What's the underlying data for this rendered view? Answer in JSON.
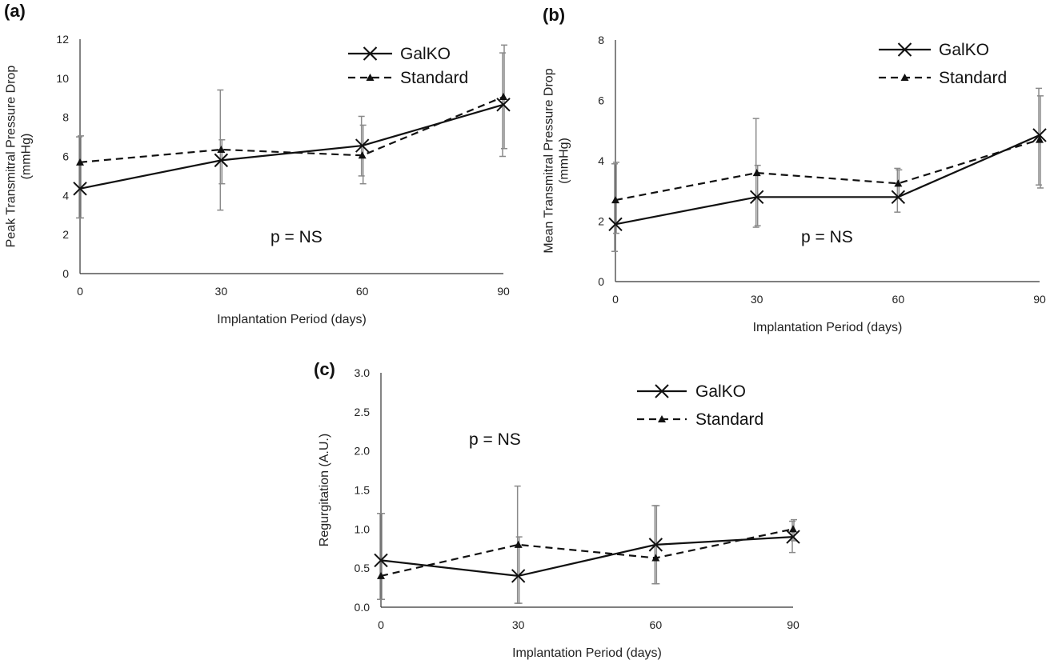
{
  "chart_data": [
    {
      "panel": "(a)",
      "type": "line",
      "xlabel": "Implantation Period (days)",
      "ylabel": "Peak Transmitral Pressure Drop (mmHg)",
      "ylabel_lines": [
        "Peak Transmitral Pressure Drop",
        "(mmHg)"
      ],
      "x_ticks": [
        0,
        30,
        60,
        90
      ],
      "y_ticks": [
        0,
        2,
        4,
        6,
        8,
        10,
        12
      ],
      "xlim": [
        0,
        90
      ],
      "ylim": [
        0,
        12
      ],
      "annotation": "p = NS",
      "legend_position": "top-right",
      "series": [
        {
          "name": "GalKO",
          "x": [
            0,
            30,
            60,
            90
          ],
          "values": [
            4.35,
            5.8,
            6.55,
            8.65
          ],
          "err_low": [
            2.85,
            3.25,
            5.0,
            6.0
          ],
          "err_high": [
            7.0,
            9.4,
            8.05,
            11.3
          ]
        },
        {
          "name": "Standard",
          "x": [
            0,
            30,
            60,
            90
          ],
          "values": [
            5.7,
            6.35,
            6.05,
            9.05
          ],
          "err_low": [
            2.85,
            4.6,
            4.6,
            6.4
          ],
          "err_high": [
            7.05,
            6.85,
            7.6,
            11.7
          ]
        }
      ]
    },
    {
      "panel": "(b)",
      "type": "line",
      "xlabel": "Implantation Period (days)",
      "ylabel": "Mean Transmitral Pressure Drop (mmHg)",
      "ylabel_lines": [
        "Mean Transmitral Pressure Drop",
        "(mmHg)"
      ],
      "x_ticks": [
        0,
        30,
        60,
        90
      ],
      "y_ticks": [
        0,
        2,
        4,
        6,
        8
      ],
      "xlim": [
        0,
        90
      ],
      "ylim": [
        0,
        8
      ],
      "annotation": "p = NS",
      "legend_position": "top-right",
      "series": [
        {
          "name": "GalKO",
          "x": [
            0,
            30,
            60,
            90
          ],
          "values": [
            1.9,
            2.8,
            2.8,
            4.85
          ],
          "err_low": [
            1.0,
            1.8,
            2.3,
            3.2
          ],
          "err_high": [
            3.9,
            5.4,
            3.75,
            6.4
          ]
        },
        {
          "name": "Standard",
          "x": [
            0,
            30,
            60,
            90
          ],
          "values": [
            2.7,
            3.6,
            3.25,
            4.7
          ],
          "err_low": [
            1.6,
            1.85,
            2.75,
            3.1
          ],
          "err_high": [
            3.95,
            3.85,
            3.7,
            6.15
          ]
        }
      ]
    },
    {
      "panel": "(c)",
      "type": "line",
      "xlabel": "Implantation Period (days)",
      "ylabel": "Regurgitation (A.U.)",
      "ylabel_lines": [
        "Regurgitation (A.U.)"
      ],
      "x_ticks": [
        0,
        30,
        60,
        90
      ],
      "y_ticks": [
        "0.0",
        "0.5",
        "1.0",
        "1.5",
        "2.0",
        "2.5",
        "3.0"
      ],
      "xlim": [
        0,
        90
      ],
      "ylim": [
        0,
        3.0
      ],
      "annotation": "p = NS",
      "legend_position": "top-right",
      "series": [
        {
          "name": "GalKO",
          "x": [
            0,
            30,
            60,
            90
          ],
          "values": [
            0.6,
            0.4,
            0.8,
            0.9
          ],
          "err_low": [
            0.1,
            0.05,
            0.3,
            0.7
          ],
          "err_high": [
            1.2,
            1.55,
            1.3,
            1.1
          ]
        },
        {
          "name": "Standard",
          "x": [
            0,
            30,
            60,
            90
          ],
          "values": [
            0.4,
            0.8,
            0.63,
            1.0
          ],
          "err_low": [
            0.1,
            0.05,
            0.3,
            0.85
          ],
          "err_high": [
            1.2,
            0.9,
            1.3,
            1.12
          ]
        }
      ]
    }
  ]
}
